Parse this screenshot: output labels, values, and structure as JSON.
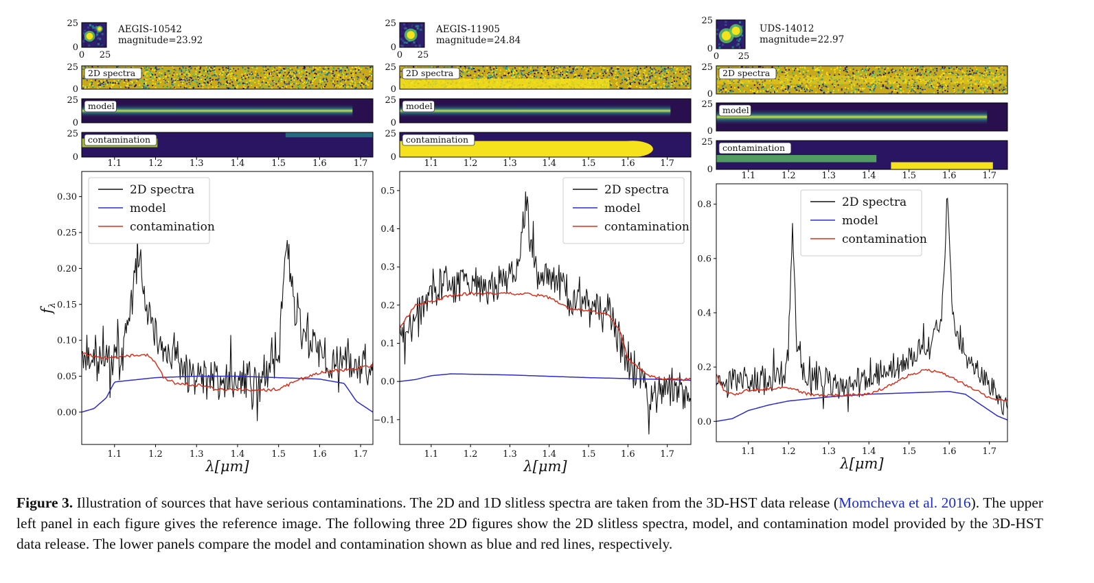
{
  "figure": {
    "caption": {
      "label": "Figure 3.",
      "text_before": "Illustration of sources that have serious contaminations. The 2D and 1D slitless spectra are taken from the 3D-HST data release (",
      "ref1": "Momcheva et al.",
      "ref2": "2016",
      "text_after": "). The upper left panel in each figure gives the reference image. The following three 2D figures show the 2D slitless spectra, model, and contamination model provided by the 3D-HST data release. The lower panels compare the model and contamination shown as blue and red lines, respectively."
    }
  },
  "colors": {
    "spectrum": "#111111",
    "model": "#2b2bd0",
    "contamination": "#d9301e",
    "ref_link": "#1a2bd6",
    "viridis_low": "#2a0f4e",
    "viridis_high": "#f5e21c"
  },
  "chart_data": [
    {
      "type": "line",
      "source": "AEGIS-10542",
      "magnitude_label": "magnitude=23.92",
      "thumbnail_ticks": {
        "x": [
          "0",
          "25"
        ],
        "y": [
          "25",
          "0"
        ]
      },
      "strip_labels": [
        "2D spectra",
        "model",
        "contamination"
      ],
      "strip_yticks": [
        "25",
        "0"
      ],
      "xlabel": "λ[μm]",
      "ylabel": "fλ",
      "xlim": [
        1.02,
        1.73
      ],
      "ylim": [
        -0.045,
        0.335
      ],
      "xticks": [
        1.1,
        1.2,
        1.3,
        1.4,
        1.5,
        1.6,
        1.7
      ],
      "yticks": [
        0.0,
        0.05,
        0.1,
        0.15,
        0.2,
        0.25,
        0.3
      ],
      "ytick_labels": [
        "0.00",
        "0.05",
        "0.10",
        "0.15",
        "0.20",
        "0.25",
        "0.30"
      ],
      "legend_position": "top-left",
      "series": [
        {
          "name": "2D spectra",
          "color": "#111111",
          "noise": 0.028,
          "base": [
            [
              1.02,
              0.085
            ],
            [
              1.08,
              0.075
            ],
            [
              1.12,
              0.08
            ],
            [
              1.16,
              0.22
            ],
            [
              1.175,
              0.17
            ],
            [
              1.2,
              0.1
            ],
            [
              1.3,
              0.045
            ],
            [
              1.45,
              0.04
            ],
            [
              1.5,
              0.08
            ],
            [
              1.52,
              0.24
            ],
            [
              1.54,
              0.14
            ],
            [
              1.6,
              0.08
            ],
            [
              1.73,
              0.06
            ]
          ]
        },
        {
          "name": "model",
          "color": "#2b2bd0",
          "points": [
            [
              1.02,
              0.0
            ],
            [
              1.05,
              0.005
            ],
            [
              1.08,
              0.02
            ],
            [
              1.1,
              0.042
            ],
            [
              1.15,
              0.045
            ],
            [
              1.2,
              0.048
            ],
            [
              1.3,
              0.05
            ],
            [
              1.4,
              0.05
            ],
            [
              1.5,
              0.048
            ],
            [
              1.6,
              0.046
            ],
            [
              1.66,
              0.04
            ],
            [
              1.69,
              0.015
            ],
            [
              1.73,
              0.0
            ]
          ]
        },
        {
          "name": "contamination",
          "color": "#d9301e",
          "points": [
            [
              1.02,
              0.082
            ],
            [
              1.05,
              0.078
            ],
            [
              1.08,
              0.075
            ],
            [
              1.12,
              0.078
            ],
            [
              1.18,
              0.08
            ],
            [
              1.2,
              0.07
            ],
            [
              1.22,
              0.048
            ],
            [
              1.25,
              0.04
            ],
            [
              1.3,
              0.038
            ],
            [
              1.35,
              0.032
            ],
            [
              1.45,
              0.03
            ],
            [
              1.5,
              0.032
            ],
            [
              1.55,
              0.045
            ],
            [
              1.6,
              0.055
            ],
            [
              1.65,
              0.058
            ],
            [
              1.7,
              0.062
            ],
            [
              1.73,
              0.065
            ]
          ]
        }
      ]
    },
    {
      "type": "line",
      "source": "AEGIS-11905",
      "magnitude_label": "magnitude=24.84",
      "thumbnail_ticks": {
        "x": [
          "0",
          "25"
        ],
        "y": [
          "25",
          "0"
        ]
      },
      "strip_labels": [
        "2D spectra",
        "model",
        "contamination"
      ],
      "strip_yticks": [
        "25",
        "0"
      ],
      "xlabel": "λ[μm]",
      "ylabel": "",
      "xlim": [
        1.02,
        1.76
      ],
      "ylim": [
        -0.165,
        0.55
      ],
      "xticks": [
        1.1,
        1.2,
        1.3,
        1.4,
        1.5,
        1.6,
        1.7
      ],
      "yticks": [
        -0.1,
        0.0,
        0.1,
        0.2,
        0.3,
        0.4,
        0.5
      ],
      "ytick_labels": [
        "−0.1",
        "0.0",
        "0.1",
        "0.2",
        "0.3",
        "0.4",
        "0.5"
      ],
      "legend_position": "top-right",
      "series": [
        {
          "name": "2D spectra",
          "color": "#111111",
          "noise": 0.045,
          "base": [
            [
              1.02,
              0.13
            ],
            [
              1.05,
              0.18
            ],
            [
              1.1,
              0.23
            ],
            [
              1.15,
              0.26
            ],
            [
              1.25,
              0.25
            ],
            [
              1.32,
              0.28
            ],
            [
              1.34,
              0.48
            ],
            [
              1.36,
              0.3
            ],
            [
              1.45,
              0.22
            ],
            [
              1.55,
              0.18
            ],
            [
              1.6,
              0.06
            ],
            [
              1.65,
              -0.03
            ],
            [
              1.76,
              -0.02
            ]
          ]
        },
        {
          "name": "model",
          "color": "#2b2bd0",
          "points": [
            [
              1.02,
              0.0
            ],
            [
              1.06,
              0.005
            ],
            [
              1.1,
              0.015
            ],
            [
              1.15,
              0.02
            ],
            [
              1.3,
              0.017
            ],
            [
              1.5,
              0.01
            ],
            [
              1.7,
              0.005
            ],
            [
              1.76,
              0.003
            ]
          ]
        },
        {
          "name": "contamination",
          "color": "#d9301e",
          "points": [
            [
              1.02,
              0.14
            ],
            [
              1.04,
              0.17
            ],
            [
              1.06,
              0.2
            ],
            [
              1.1,
              0.21
            ],
            [
              1.15,
              0.225
            ],
            [
              1.2,
              0.23
            ],
            [
              1.3,
              0.23
            ],
            [
              1.35,
              0.23
            ],
            [
              1.4,
              0.22
            ],
            [
              1.45,
              0.19
            ],
            [
              1.5,
              0.185
            ],
            [
              1.55,
              0.175
            ],
            [
              1.58,
              0.13
            ],
            [
              1.6,
              0.06
            ],
            [
              1.65,
              0.015
            ],
            [
              1.7,
              0.005
            ],
            [
              1.76,
              0.005
            ]
          ]
        }
      ]
    },
    {
      "type": "line",
      "source": "UDS-14012",
      "magnitude_label": "magnitude=22.97",
      "thumbnail_ticks": {
        "x": [
          "0",
          "25"
        ],
        "y": [
          "25",
          "0"
        ]
      },
      "strip_labels": [
        "2D spectra",
        "model",
        "contamination"
      ],
      "strip_yticks": [
        "25",
        "0"
      ],
      "xlabel": "λ[μm]",
      "ylabel": "",
      "xlim": [
        1.02,
        1.745
      ],
      "ylim": [
        -0.075,
        0.875
      ],
      "xticks": [
        1.1,
        1.2,
        1.3,
        1.4,
        1.5,
        1.6,
        1.7
      ],
      "yticks": [
        0.0,
        0.2,
        0.4,
        0.6,
        0.8
      ],
      "ytick_labels": [
        "0.0",
        "0.2",
        "0.4",
        "0.6",
        "0.8"
      ],
      "legend_position": "top-center",
      "series": [
        {
          "name": "2D spectra",
          "color": "#111111",
          "noise": 0.05,
          "base": [
            [
              1.02,
              0.16
            ],
            [
              1.1,
              0.14
            ],
            [
              1.19,
              0.17
            ],
            [
              1.2,
              0.3
            ],
            [
              1.21,
              0.74
            ],
            [
              1.22,
              0.3
            ],
            [
              1.24,
              0.16
            ],
            [
              1.35,
              0.13
            ],
            [
              1.45,
              0.18
            ],
            [
              1.55,
              0.28
            ],
            [
              1.58,
              0.35
            ],
            [
              1.595,
              0.82
            ],
            [
              1.61,
              0.36
            ],
            [
              1.66,
              0.2
            ],
            [
              1.745,
              0.05
            ]
          ]
        },
        {
          "name": "model",
          "color": "#2b2bd0",
          "points": [
            [
              1.02,
              0.0
            ],
            [
              1.06,
              0.01
            ],
            [
              1.1,
              0.04
            ],
            [
              1.15,
              0.06
            ],
            [
              1.2,
              0.075
            ],
            [
              1.3,
              0.09
            ],
            [
              1.4,
              0.1
            ],
            [
              1.5,
              0.105
            ],
            [
              1.6,
              0.11
            ],
            [
              1.64,
              0.1
            ],
            [
              1.68,
              0.06
            ],
            [
              1.72,
              0.02
            ],
            [
              1.745,
              0.005
            ]
          ]
        },
        {
          "name": "contamination",
          "color": "#d9301e",
          "points": [
            [
              1.02,
              0.17
            ],
            [
              1.04,
              0.11
            ],
            [
              1.07,
              0.1
            ],
            [
              1.1,
              0.115
            ],
            [
              1.15,
              0.12
            ],
            [
              1.2,
              0.125
            ],
            [
              1.25,
              0.1
            ],
            [
              1.3,
              0.095
            ],
            [
              1.4,
              0.1
            ],
            [
              1.45,
              0.13
            ],
            [
              1.5,
              0.17
            ],
            [
              1.54,
              0.19
            ],
            [
              1.58,
              0.18
            ],
            [
              1.62,
              0.15
            ],
            [
              1.66,
              0.12
            ],
            [
              1.7,
              0.085
            ],
            [
              1.745,
              0.08
            ]
          ]
        }
      ]
    }
  ]
}
